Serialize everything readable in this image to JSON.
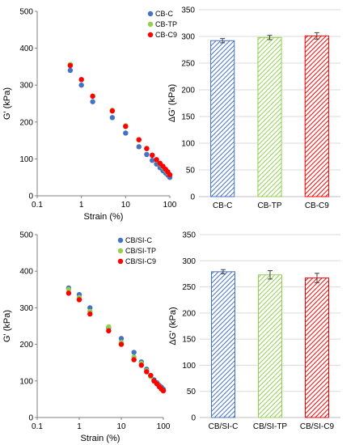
{
  "chart_data": [
    {
      "type": "scatter",
      "xscale": "log",
      "xlim": [
        0.1,
        100
      ],
      "ylim": [
        0,
        500
      ],
      "xticks": [
        "0.1",
        "1",
        "10",
        "100"
      ],
      "yticks": [
        "0",
        "100",
        "200",
        "300",
        "400",
        "500"
      ],
      "xlabel": "Strain (%)",
      "ylabel": "G' (kPa)",
      "legend_position": "top-right",
      "series": [
        {
          "name": "CB-C",
          "color": "#4472C4",
          "x": [
            0.56,
            1.0,
            1.8,
            5.0,
            10,
            20,
            30,
            40,
            50,
            60,
            70,
            80,
            90,
            100
          ],
          "y": [
            340,
            300,
            255,
            212,
            170,
            133,
            112,
            96,
            86,
            76,
            68,
            62,
            56,
            50
          ]
        },
        {
          "name": "CB-TP",
          "color": "#92D050",
          "x": [
            0.56,
            1.0,
            1.8,
            5.0,
            10,
            20,
            30,
            40,
            50,
            60,
            70,
            80,
            90,
            100
          ],
          "y": [
            356,
            315,
            270,
            232,
            190,
            152,
            128,
            110,
            97,
            87,
            78,
            70,
            63,
            57
          ]
        },
        {
          "name": "CB-C9",
          "color": "#FF0000",
          "x": [
            0.56,
            1.0,
            1.8,
            5.0,
            10,
            20,
            30,
            40,
            50,
            60,
            70,
            80,
            90,
            100
          ],
          "y": [
            353,
            315,
            270,
            230,
            188,
            152,
            128,
            110,
            98,
            88,
            80,
            72,
            65,
            57
          ]
        }
      ]
    },
    {
      "type": "bar",
      "categories": [
        "CB-C",
        "CB-TP",
        "CB-C9"
      ],
      "values": [
        292,
        298,
        301
      ],
      "errors": [
        4,
        4,
        6
      ],
      "colors": [
        "#4472C4",
        "#92D050",
        "#FF0000"
      ],
      "ylim": [
        0,
        350
      ],
      "yticks": [
        "0",
        "50",
        "100",
        "150",
        "200",
        "250",
        "300",
        "350"
      ],
      "ylabel": "ΔG' (kPa)"
    },
    {
      "type": "scatter",
      "xscale": "log",
      "xlim": [
        0.1,
        100
      ],
      "ylim": [
        0,
        500
      ],
      "xticks": [
        "0.1",
        "1",
        "10",
        "100"
      ],
      "yticks": [
        "0",
        "100",
        "200",
        "300",
        "400",
        "500"
      ],
      "xlabel": "Strain (%)",
      "ylabel": "G' (kPa)",
      "legend_position": "top-right",
      "series": [
        {
          "name": "CB/SI-C",
          "color": "#4472C4",
          "x": [
            0.56,
            1.0,
            1.8,
            5.0,
            10,
            20,
            30,
            40,
            50,
            60,
            70,
            80,
            90,
            100
          ],
          "y": [
            354,
            336,
            300,
            245,
            216,
            178,
            152,
            132,
            113,
            103,
            95,
            88,
            83,
            77
          ]
        },
        {
          "name": "CB/SI-TP",
          "color": "#92D050",
          "x": [
            0.56,
            1.0,
            1.8,
            5.0,
            10,
            20,
            30,
            40,
            50,
            60,
            70,
            80,
            90,
            100
          ],
          "y": [
            350,
            328,
            290,
            248,
            205,
            165,
            148,
            128,
            112,
            100,
            92,
            85,
            78,
            73
          ]
        },
        {
          "name": "CB/SI-C9",
          "color": "#FF0000",
          "x": [
            0.56,
            1.0,
            1.8,
            5.0,
            10,
            20,
            30,
            40,
            50,
            60,
            70,
            80,
            90,
            100
          ],
          "y": [
            340,
            322,
            283,
            237,
            200,
            158,
            143,
            125,
            115,
            100,
            92,
            84,
            78,
            73
          ]
        }
      ]
    },
    {
      "type": "bar",
      "categories": [
        "CB/SI-C",
        "CB/SI-TP",
        "CB/SI-C9"
      ],
      "values": [
        279,
        273,
        267
      ],
      "errors": [
        4,
        8,
        9
      ],
      "colors": [
        "#4472C4",
        "#92D050",
        "#FF0000"
      ],
      "ylim": [
        0,
        350
      ],
      "yticks": [
        "0",
        "50",
        "100",
        "150",
        "200",
        "250",
        "300",
        "350"
      ],
      "ylabel": "ΔG' (kPa)"
    }
  ]
}
